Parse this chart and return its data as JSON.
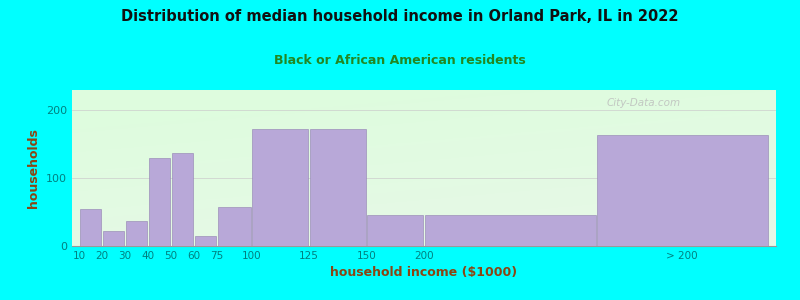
{
  "title": "Distribution of median household income in Orland Park, IL in 2022",
  "subtitle": "Black or African American residents",
  "xlabel": "household income ($1000)",
  "ylabel": "households",
  "background_color": "#00FFFF",
  "bar_color": "#b8a8d8",
  "bar_edge_color": "#9080b0",
  "title_color": "#111111",
  "subtitle_color": "#228822",
  "axis_label_color": "#8B4513",
  "tick_label_color": "#008080",
  "values": [
    55,
    22,
    37,
    130,
    137,
    15,
    57,
    172,
    172,
    45,
    45,
    163
  ],
  "bar_lefts": [
    0,
    10,
    20,
    30,
    40,
    50,
    60,
    75,
    100,
    125,
    150,
    225
  ],
  "bar_widths": [
    10,
    10,
    10,
    10,
    10,
    10,
    15,
    25,
    25,
    25,
    75,
    75
  ],
  "tick_pos": [
    0,
    10,
    20,
    30,
    40,
    50,
    60,
    75,
    100,
    125,
    150,
    200,
    262
  ],
  "tick_lab": [
    "10",
    "20",
    "30",
    "40",
    "50",
    "60",
    "75",
    "100",
    "125",
    "150",
    "200",
    "",
    "> 200"
  ],
  "xlim": [
    -3,
    303
  ],
  "ylim": [
    0,
    230
  ],
  "yticks": [
    0,
    100,
    200
  ],
  "watermark": "City-Data.com"
}
